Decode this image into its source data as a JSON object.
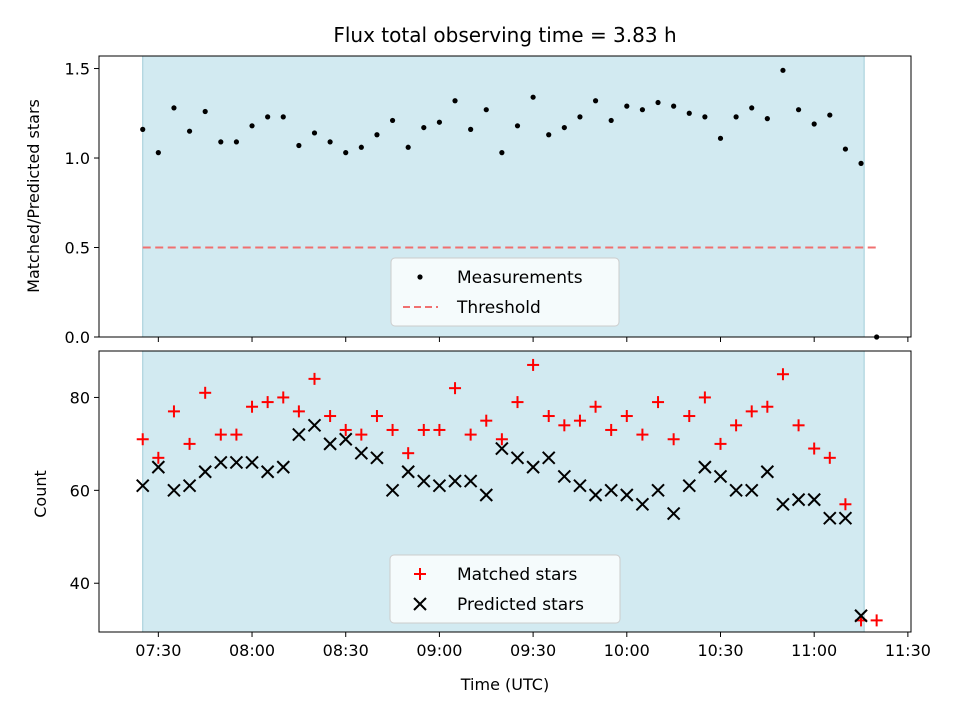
{
  "chart_data": [
    {
      "type": "scatter",
      "title": "Flux total observing time = 3.83 h",
      "xlabel": "",
      "ylabel": "Matched/Predicted stars",
      "ylim": [
        0,
        1.57
      ],
      "yticks": [
        0.0,
        0.5,
        1.0,
        1.5
      ],
      "ytick_labels": [
        "0.0",
        "0.5",
        "1.0",
        "1.5"
      ],
      "shaded_interval": [
        "07:25",
        "11:16"
      ],
      "threshold": {
        "value": 0.5,
        "color": "#f07070",
        "style": "dashed"
      },
      "legend": {
        "placement": "lower-center",
        "entries": [
          "Measurements",
          "Threshold"
        ]
      },
      "series": [
        {
          "name": "Measurements",
          "color": "#000000",
          "marker": "dot",
          "x": [
            "07:25",
            "07:30",
            "07:35",
            "07:40",
            "07:45",
            "07:50",
            "07:55",
            "08:00",
            "08:05",
            "08:10",
            "08:15",
            "08:20",
            "08:25",
            "08:30",
            "08:35",
            "08:40",
            "08:45",
            "08:50",
            "08:55",
            "09:00",
            "09:05",
            "09:10",
            "09:15",
            "09:20",
            "09:25",
            "09:30",
            "09:35",
            "09:40",
            "09:45",
            "09:50",
            "09:55",
            "10:00",
            "10:05",
            "10:10",
            "10:15",
            "10:20",
            "10:25",
            "10:30",
            "10:35",
            "10:40",
            "10:45",
            "10:50",
            "10:55",
            "11:00",
            "11:05",
            "11:10",
            "11:15",
            "11:20"
          ],
          "y": [
            1.16,
            1.03,
            1.28,
            1.15,
            1.26,
            1.09,
            1.09,
            1.18,
            1.23,
            1.23,
            1.07,
            1.14,
            1.09,
            1.03,
            1.06,
            1.13,
            1.21,
            1.06,
            1.17,
            1.2,
            1.32,
            1.16,
            1.27,
            1.03,
            1.18,
            1.34,
            1.13,
            1.17,
            1.23,
            1.32,
            1.21,
            1.29,
            1.27,
            1.31,
            1.29,
            1.25,
            1.23,
            1.11,
            1.23,
            1.28,
            1.22,
            1.49,
            1.27,
            1.19,
            1.24,
            1.05,
            0.97,
            0.0
          ]
        }
      ]
    },
    {
      "type": "scatter",
      "title": "",
      "xlabel": "Time (UTC)",
      "ylabel": "Count",
      "ylim": [
        29.5,
        90
      ],
      "yticks": [
        40,
        60,
        80
      ],
      "ytick_labels": [
        "40",
        "60",
        "80"
      ],
      "xticks": [
        "07:30",
        "08:00",
        "08:30",
        "09:00",
        "09:30",
        "10:00",
        "10:30",
        "11:00",
        "11:30"
      ],
      "shaded_interval": [
        "07:25",
        "11:16"
      ],
      "legend": {
        "placement": "lower-center",
        "entries": [
          "Matched stars",
          "Predicted stars"
        ]
      },
      "series": [
        {
          "name": "Matched stars",
          "color": "#ff0000",
          "marker": "plus",
          "x": [
            "07:25",
            "07:30",
            "07:35",
            "07:40",
            "07:45",
            "07:50",
            "07:55",
            "08:00",
            "08:05",
            "08:10",
            "08:15",
            "08:20",
            "08:25",
            "08:30",
            "08:35",
            "08:40",
            "08:45",
            "08:50",
            "08:55",
            "09:00",
            "09:05",
            "09:10",
            "09:15",
            "09:20",
            "09:25",
            "09:30",
            "09:35",
            "09:40",
            "09:45",
            "09:50",
            "09:55",
            "10:00",
            "10:05",
            "10:10",
            "10:15",
            "10:20",
            "10:25",
            "10:30",
            "10:35",
            "10:40",
            "10:45",
            "10:50",
            "10:55",
            "11:00",
            "11:05",
            "11:10",
            "11:15",
            "11:20"
          ],
          "y": [
            71,
            67,
            77,
            70,
            81,
            72,
            72,
            78,
            79,
            80,
            77,
            84,
            76,
            73,
            72,
            76,
            73,
            68,
            73,
            73,
            82,
            72,
            75,
            71,
            79,
            87,
            76,
            74,
            75,
            78,
            73,
            76,
            72,
            79,
            71,
            76,
            80,
            70,
            74,
            77,
            78,
            85,
            74,
            69,
            67,
            57,
            32,
            32
          ]
        },
        {
          "name": "Predicted stars",
          "color": "#000000",
          "marker": "x",
          "x": [
            "07:25",
            "07:30",
            "07:35",
            "07:40",
            "07:45",
            "07:50",
            "07:55",
            "08:00",
            "08:05",
            "08:10",
            "08:15",
            "08:20",
            "08:25",
            "08:30",
            "08:35",
            "08:40",
            "08:45",
            "08:50",
            "08:55",
            "09:00",
            "09:05",
            "09:10",
            "09:15",
            "09:20",
            "09:25",
            "09:30",
            "09:35",
            "09:40",
            "09:45",
            "09:50",
            "09:55",
            "10:00",
            "10:05",
            "10:10",
            "10:15",
            "10:20",
            "10:25",
            "10:30",
            "10:35",
            "10:40",
            "10:45",
            "10:50",
            "10:55",
            "11:00",
            "11:05",
            "11:10",
            "11:15"
          ],
          "y": [
            61,
            65,
            60,
            61,
            64,
            66,
            66,
            66,
            64,
            65,
            72,
            74,
            70,
            71,
            68,
            67,
            60,
            64,
            62,
            61,
            62,
            62,
            59,
            69,
            67,
            65,
            67,
            63,
            61,
            59,
            60,
            59,
            57,
            60,
            55,
            61,
            65,
            63,
            60,
            60,
            64,
            57,
            58,
            58,
            54,
            54,
            33
          ]
        }
      ]
    }
  ]
}
